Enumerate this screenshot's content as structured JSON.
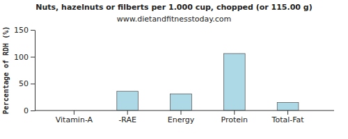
{
  "chart_data": {
    "type": "bar",
    "title": "Nuts, hazelnuts or filberts per 1.000 cup, chopped (or 115.00 g)",
    "subtitle": "www.dietandfitnesstoday.com",
    "y_label": "Percentage of RDH (%)",
    "categories": [
      "Vitamin-A",
      "-RAE",
      "Energy",
      "Protein",
      "Total-Fat"
    ],
    "values": [
      0,
      36,
      31,
      106,
      15
    ],
    "color": "#add8e6",
    "ylim": [
      0,
      150
    ],
    "yticks": [
      0,
      50,
      100,
      150
    ],
    "grid": false
  }
}
